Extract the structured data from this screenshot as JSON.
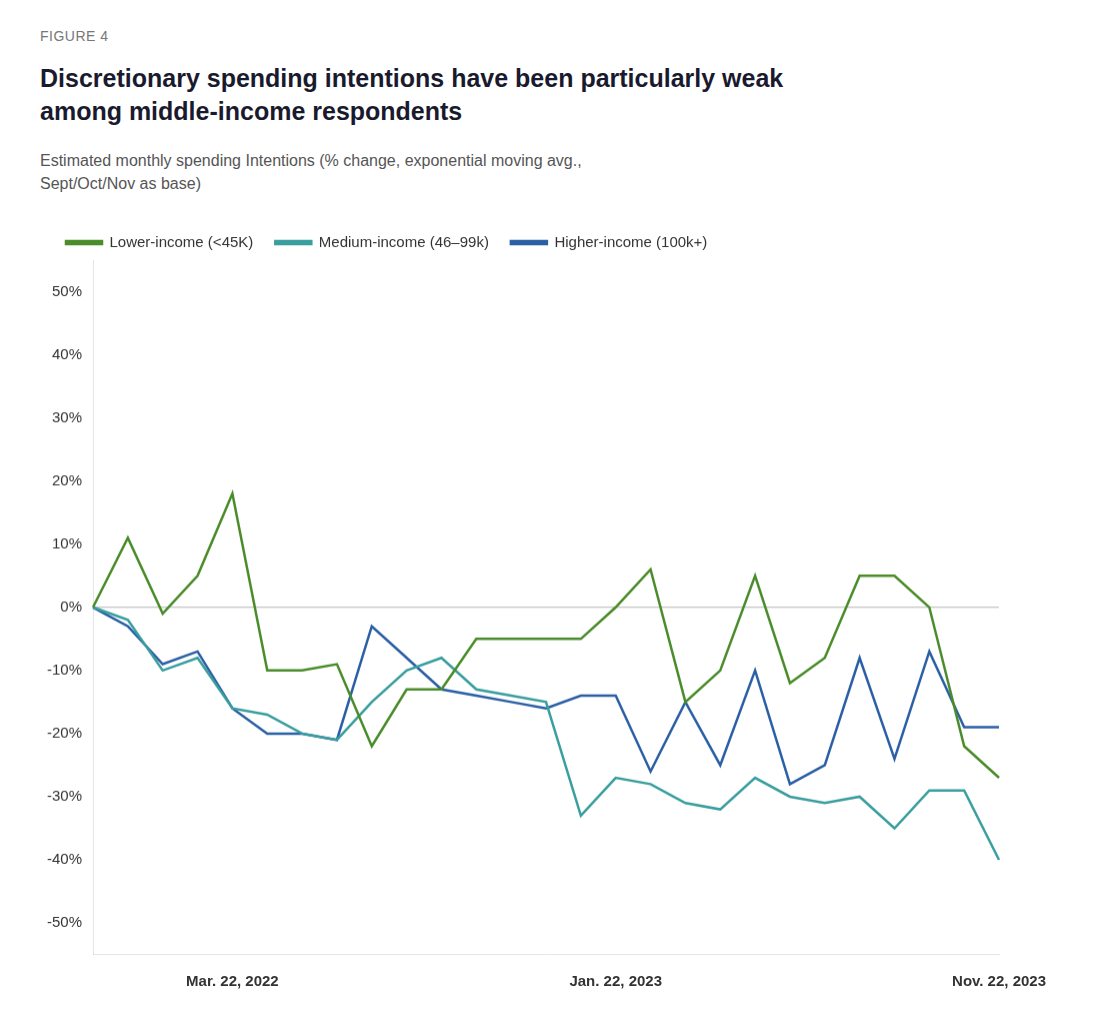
{
  "chart_data": {
    "type": "line",
    "annotations": [
      "FIGURE 4"
    ],
    "title": "Discretionary spending intentions have been particularly weak\namong middle-income respondents",
    "subtitle": "Estimated monthly spending Intentions (% change, exponential moving avg.,\nSept/Oct/Nov as base)",
    "categories": [
      null,
      null,
      null,
      null,
      "Mar. 22, 2022",
      null,
      null,
      null,
      null,
      null,
      null,
      null,
      null,
      null,
      null,
      "Jan. 22, 2023",
      null,
      null,
      null,
      null,
      null,
      null,
      null,
      null,
      null,
      null,
      "Nov. 22, 2023"
    ],
    "series": [
      {
        "name": "Lower-income (<45K)",
        "color": "#4a8c2a",
        "values": [
          0,
          11,
          -1,
          5,
          18,
          -10,
          -10,
          -9,
          -22,
          -13,
          -13,
          -5,
          -5,
          -5,
          -5,
          0,
          6,
          -15,
          -10,
          5,
          -12,
          -8,
          5,
          5,
          0,
          -22,
          -27
        ]
      },
      {
        "name": "Medium-income (46–99k)",
        "color": "#3a9e9e",
        "values": [
          0,
          -2,
          -10,
          -8,
          -16,
          -17,
          -20,
          -21,
          -15,
          -10,
          -8,
          -13,
          -14,
          -15,
          -33,
          -27,
          -28,
          -31,
          -32,
          -27,
          -30,
          -31,
          -30,
          -35,
          -29,
          -29,
          -40
        ]
      },
      {
        "name": "Higher-income (100k+)",
        "color": "#2b5fa5",
        "values": [
          0,
          -3,
          -9,
          -7,
          -16,
          -20,
          -20,
          -21,
          -3,
          -8,
          -13,
          -14,
          -15,
          -16,
          -14,
          -14,
          -26,
          -15,
          -25,
          -10,
          -28,
          -25,
          -8,
          -24,
          -7,
          -19,
          -19
        ]
      }
    ],
    "ylim": [
      -55,
      55
    ],
    "yticks": [
      {
        "value": -50,
        "label": "-50%"
      },
      {
        "value": -40,
        "label": "-40%"
      },
      {
        "value": -30,
        "label": "-30%"
      },
      {
        "value": -20,
        "label": "-20%"
      },
      {
        "value": -10,
        "label": "-10%"
      },
      {
        "value": 0,
        "label": "0%"
      },
      {
        "value": 10,
        "label": "10%"
      },
      {
        "value": 20,
        "label": "20%"
      },
      {
        "value": 30,
        "label": "30%"
      },
      {
        "value": 40,
        "label": "40%"
      },
      {
        "value": 50,
        "label": "50%"
      }
    ],
    "grid": false,
    "legend": "upper left"
  }
}
